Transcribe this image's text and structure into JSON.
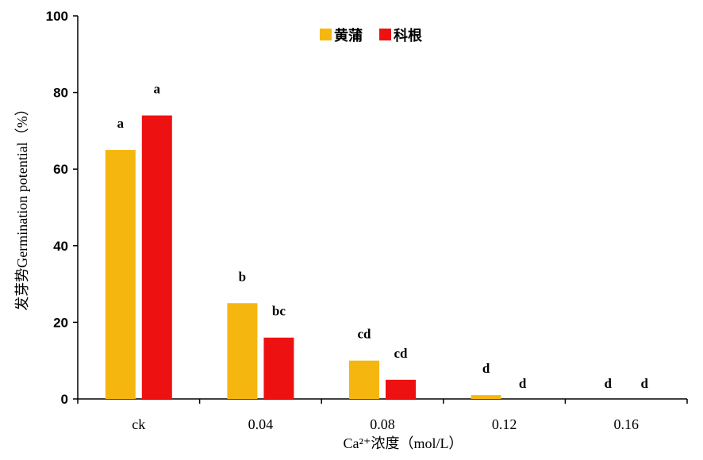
{
  "chart_data": {
    "type": "bar",
    "categories": [
      "ck",
      "0.04",
      "0.08",
      "0.12",
      "0.16"
    ],
    "series": [
      {
        "name": "黄蒲",
        "color": "#f5b70f",
        "values": [
          65,
          25,
          10,
          1,
          0
        ],
        "labels": [
          "a",
          "b",
          "cd",
          "d",
          "d"
        ]
      },
      {
        "name": "科根",
        "color": "#ee1111",
        "values": [
          74,
          16,
          5,
          0,
          0
        ],
        "labels": [
          "a",
          "bc",
          "cd",
          "d",
          "d"
        ]
      }
    ],
    "xlabel": "Ca²⁺浓度（mol/L）",
    "ylabel": "发芽势Germination potential（%）",
    "ylim": [
      0,
      100
    ],
    "yticks": [
      0,
      20,
      40,
      60,
      80,
      100
    ],
    "grid": false,
    "legend_position": "top-center"
  }
}
